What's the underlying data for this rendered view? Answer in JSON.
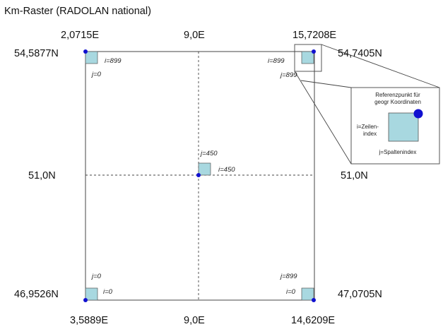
{
  "title": "Km-Raster (RADOLAN national)",
  "corners": {
    "top_left_lon": "2,0715E",
    "top_left_lat": "54,5877N",
    "top_right_lon": "15,7208E",
    "top_right_lat": "54,7405N",
    "bottom_left_lon": "3,5889E",
    "bottom_left_lat": "46,9526N",
    "bottom_right_lon": "14,6209E",
    "bottom_right_lat": "47,0705N"
  },
  "center": {
    "top_lon": "9,0E",
    "bottom_lon": "9,0E",
    "left_lat": "51,0N",
    "right_lat": "51,0N"
  },
  "indices": {
    "tl_i": "i=899",
    "tl_j": "j=0",
    "tr_i": "i=899",
    "tr_j": "j=899",
    "c_j": "j=450",
    "c_i": "i=450",
    "bl_j": "j=0",
    "bl_i": "i=0",
    "br_j": "j=899",
    "br_i": "i=0"
  },
  "inset": {
    "ref_line1": "Referenzpunkt für",
    "ref_line2": "geogr Koordinaten",
    "row_line1": "i=Zeilen-",
    "row_line2": "index",
    "col_label": "j=Spaltenindex"
  },
  "colors": {
    "cell_fill": "#a8d8e0",
    "point": "#1010d0",
    "line": "#333333"
  }
}
